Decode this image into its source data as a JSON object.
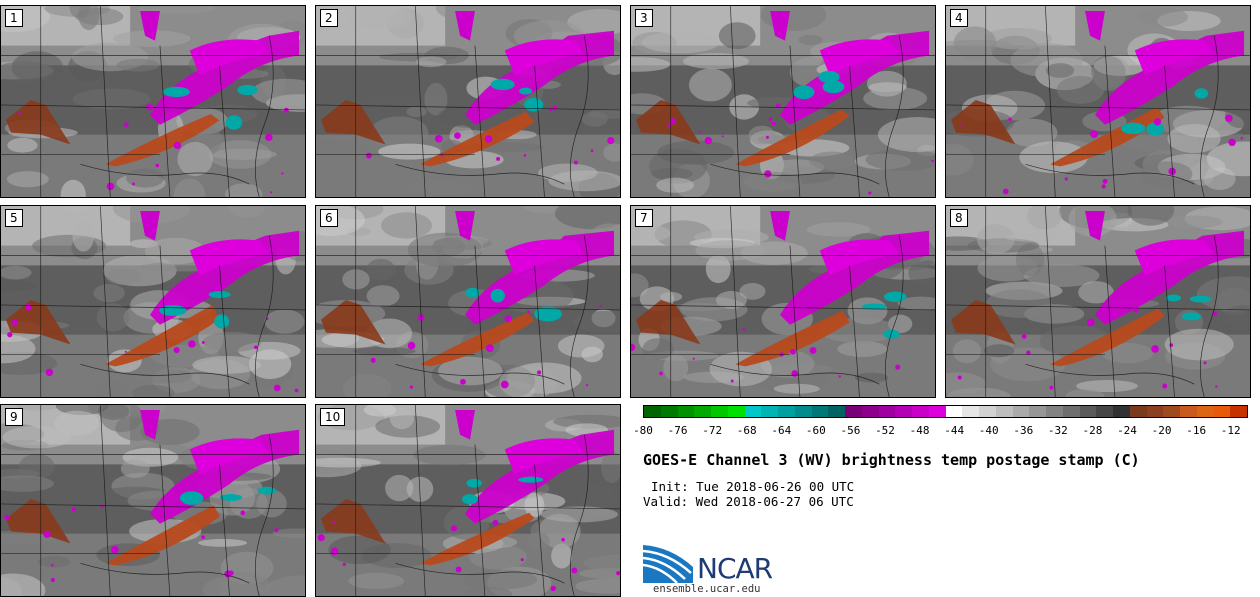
{
  "product": {
    "title": "GOES-E Channel 3 (WV) brightness temp postage stamp (C)",
    "init": "Init: Tue 2018-06-26 00 UTC",
    "valid": "Valid: Wed 2018-06-27 06 UTC",
    "logo_text": "NCAR",
    "url": "ensemble.ucar.edu"
  },
  "panels": [
    {
      "label": "1"
    },
    {
      "label": "2"
    },
    {
      "label": "3"
    },
    {
      "label": "4"
    },
    {
      "label": "5"
    },
    {
      "label": "6"
    },
    {
      "label": "7"
    },
    {
      "label": "8"
    },
    {
      "label": "9"
    },
    {
      "label": "10"
    }
  ],
  "colorbar": {
    "colors": [
      "#006400",
      "#007a00",
      "#009200",
      "#00aa00",
      "#00c800",
      "#00e000",
      "#00c8c8",
      "#00b4b4",
      "#00a0a0",
      "#008c8c",
      "#007878",
      "#006464",
      "#780078",
      "#8c008c",
      "#a000a0",
      "#b400b4",
      "#c800c8",
      "#dc00dc",
      "#ffffff",
      "#e6e6e6",
      "#d2d2d2",
      "#bebebe",
      "#aaaaaa",
      "#969696",
      "#828282",
      "#6e6e6e",
      "#5a5a5a",
      "#464646",
      "#323232",
      "#7a3a1e",
      "#8c4020",
      "#a04a20",
      "#c85a1e",
      "#dc6414",
      "#e65a0a",
      "#c83200"
    ],
    "tick_labels": [
      "-80",
      "-76",
      "-72",
      "-68",
      "-64",
      "-60",
      "-56",
      "-52",
      "-48",
      "-44",
      "-40",
      "-36",
      "-32",
      "-28",
      "-24",
      "-20",
      "-16",
      "-12"
    ],
    "range": [
      -80,
      -10
    ]
  }
}
